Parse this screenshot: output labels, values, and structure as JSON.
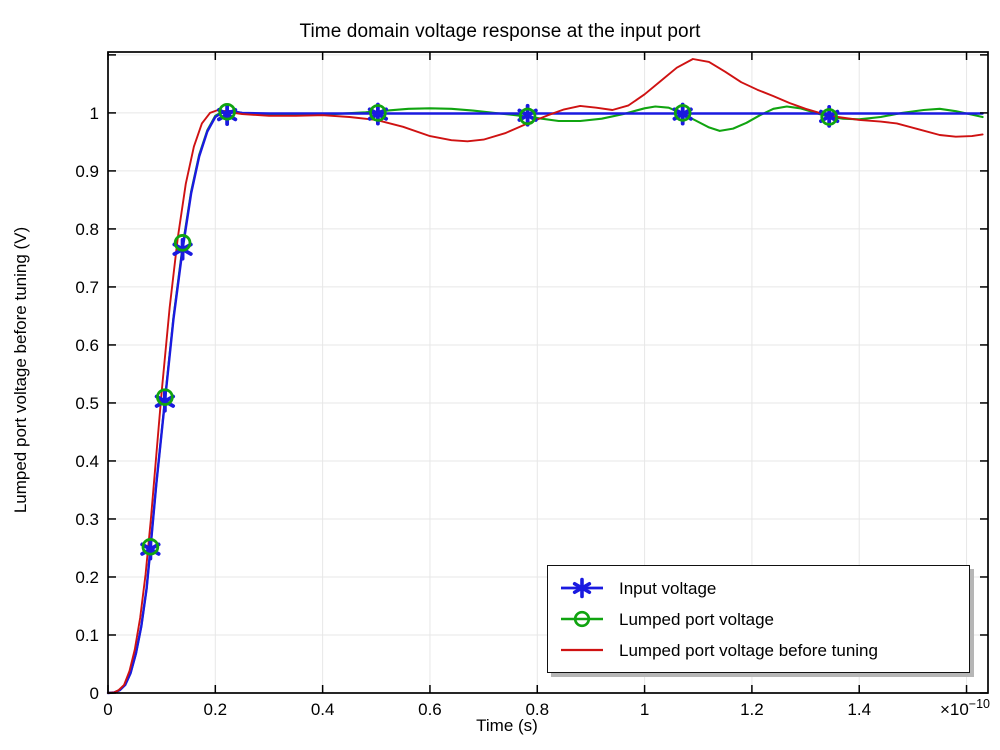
{
  "chart_data": {
    "type": "line",
    "title": "Time domain voltage response at the input port",
    "xlabel": "Time (s)",
    "ylabel": "Lumped port voltage before tuning (V)",
    "x_unit_note": "x values in units of 1e-10 seconds",
    "x_multiplier": {
      "base": "×10",
      "exponent": "−10"
    },
    "xlim": [
      0,
      1.64
    ],
    "ylim": [
      0,
      1.105
    ],
    "grid": true,
    "grid_color": "#e7e7e7",
    "frame_color": "#000000",
    "legend_position": "bottom-right",
    "xticks": {
      "values": [
        0,
        0.2,
        0.4,
        0.6,
        0.8,
        1,
        1.2,
        1.4,
        1.6
      ],
      "labels": [
        "0",
        "0.2",
        "0.4",
        "0.6",
        "0.8",
        "1",
        "1.2",
        "1.4",
        ""
      ]
    },
    "yticks": {
      "values": [
        0,
        0.1,
        0.2,
        0.3,
        0.4,
        0.5,
        0.6,
        0.7,
        0.8,
        0.9,
        1,
        1.1
      ],
      "labels": [
        "0",
        "0.1",
        "0.2",
        "0.3",
        "0.4",
        "0.5",
        "0.6",
        "0.7",
        "0.8",
        "0.9",
        "1",
        ""
      ]
    },
    "draw_order": [
      1,
      0,
      2
    ],
    "series": [
      {
        "id": "input-voltage",
        "name": "Input voltage",
        "color": "#1a1ae0",
        "line_width": 2.4,
        "marker": "asterisk",
        "marker_points": [
          [
            0.079,
            0.248
          ],
          [
            0.106,
            0.503
          ],
          [
            0.139,
            0.765
          ],
          [
            0.222,
            0.997
          ],
          [
            0.503,
            0.998
          ],
          [
            0.782,
            0.996
          ],
          [
            1.071,
            0.998
          ],
          [
            1.344,
            0.994
          ]
        ],
        "points": [
          [
            0,
            0
          ],
          [
            0.012,
            0.001
          ],
          [
            0.022,
            0.005
          ],
          [
            0.032,
            0.014
          ],
          [
            0.042,
            0.034
          ],
          [
            0.052,
            0.068
          ],
          [
            0.062,
            0.115
          ],
          [
            0.072,
            0.18
          ],
          [
            0.079,
            0.248
          ],
          [
            0.09,
            0.36
          ],
          [
            0.106,
            0.503
          ],
          [
            0.122,
            0.645
          ],
          [
            0.139,
            0.765
          ],
          [
            0.155,
            0.862
          ],
          [
            0.17,
            0.925
          ],
          [
            0.185,
            0.968
          ],
          [
            0.2,
            0.993
          ],
          [
            0.215,
            1.002
          ],
          [
            0.23,
            1.003
          ],
          [
            0.25,
            1.0
          ],
          [
            0.3,
            0.999
          ],
          [
            0.6,
            0.999
          ],
          [
            1.0,
            0.999
          ],
          [
            1.3,
            0.999
          ],
          [
            1.63,
            0.999
          ]
        ]
      },
      {
        "id": "lumped-port-voltage",
        "name": "Lumped port voltage",
        "color": "#10a410",
        "line_width": 2.1,
        "marker": "circle",
        "marker_points": [
          [
            0.079,
            0.252
          ],
          [
            0.106,
            0.51
          ],
          [
            0.139,
            0.776
          ],
          [
            0.222,
            1.002
          ],
          [
            0.503,
            1.0
          ],
          [
            0.782,
            0.994
          ],
          [
            1.071,
            1.0
          ],
          [
            1.344,
            0.993
          ]
        ],
        "points": [
          [
            0,
            0
          ],
          [
            0.012,
            0.001
          ],
          [
            0.022,
            0.005
          ],
          [
            0.032,
            0.014
          ],
          [
            0.042,
            0.034
          ],
          [
            0.052,
            0.068
          ],
          [
            0.062,
            0.115
          ],
          [
            0.072,
            0.18
          ],
          [
            0.079,
            0.25
          ],
          [
            0.09,
            0.36
          ],
          [
            0.106,
            0.505
          ],
          [
            0.122,
            0.648
          ],
          [
            0.139,
            0.77
          ],
          [
            0.155,
            0.865
          ],
          [
            0.17,
            0.928
          ],
          [
            0.185,
            0.97
          ],
          [
            0.2,
            0.995
          ],
          [
            0.215,
            1.003
          ],
          [
            0.23,
            1.003
          ],
          [
            0.25,
            1.0
          ],
          [
            0.3,
            0.997
          ],
          [
            0.36,
            0.997
          ],
          [
            0.42,
            0.998
          ],
          [
            0.48,
            1.001
          ],
          [
            0.52,
            1.004
          ],
          [
            0.56,
            1.007
          ],
          [
            0.6,
            1.008
          ],
          [
            0.64,
            1.007
          ],
          [
            0.68,
            1.004
          ],
          [
            0.72,
            1.0
          ],
          [
            0.76,
            0.996
          ],
          [
            0.8,
            0.991
          ],
          [
            0.84,
            0.986
          ],
          [
            0.88,
            0.986
          ],
          [
            0.92,
            0.99
          ],
          [
            0.96,
            0.998
          ],
          [
            1.0,
            1.008
          ],
          [
            1.02,
            1.011
          ],
          [
            1.045,
            1.009
          ],
          [
            1.07,
            0.999
          ],
          [
            1.095,
            0.987
          ],
          [
            1.12,
            0.975
          ],
          [
            1.14,
            0.969
          ],
          [
            1.165,
            0.973
          ],
          [
            1.19,
            0.983
          ],
          [
            1.215,
            0.996
          ],
          [
            1.24,
            1.007
          ],
          [
            1.265,
            1.011
          ],
          [
            1.29,
            1.008
          ],
          [
            1.315,
            1.001
          ],
          [
            1.34,
            0.994
          ],
          [
            1.37,
            0.99
          ],
          [
            1.4,
            0.989
          ],
          [
            1.44,
            0.993
          ],
          [
            1.48,
            1.0
          ],
          [
            1.52,
            1.005
          ],
          [
            1.55,
            1.007
          ],
          [
            1.58,
            1.003
          ],
          [
            1.61,
            0.997
          ],
          [
            1.63,
            0.993
          ]
        ]
      },
      {
        "id": "lumped-port-voltage-before-tuning",
        "name": "Lumped port voltage before tuning",
        "color": "#cf1212",
        "line_width": 1.9,
        "marker": "none",
        "marker_points": [],
        "points": [
          [
            0,
            0
          ],
          [
            0.012,
            0.001
          ],
          [
            0.02,
            0.005
          ],
          [
            0.03,
            0.014
          ],
          [
            0.04,
            0.038
          ],
          [
            0.05,
            0.075
          ],
          [
            0.06,
            0.13
          ],
          [
            0.07,
            0.205
          ],
          [
            0.08,
            0.3
          ],
          [
            0.09,
            0.41
          ],
          [
            0.1,
            0.52
          ],
          [
            0.115,
            0.665
          ],
          [
            0.13,
            0.785
          ],
          [
            0.145,
            0.878
          ],
          [
            0.16,
            0.942
          ],
          [
            0.175,
            0.982
          ],
          [
            0.19,
            1.0
          ],
          [
            0.205,
            1.005
          ],
          [
            0.22,
            1.002
          ],
          [
            0.25,
            0.998
          ],
          [
            0.3,
            0.995
          ],
          [
            0.35,
            0.995
          ],
          [
            0.4,
            0.996
          ],
          [
            0.45,
            0.993
          ],
          [
            0.5,
            0.988
          ],
          [
            0.55,
            0.976
          ],
          [
            0.6,
            0.96
          ],
          [
            0.64,
            0.953
          ],
          [
            0.67,
            0.951
          ],
          [
            0.7,
            0.954
          ],
          [
            0.74,
            0.965
          ],
          [
            0.78,
            0.981
          ],
          [
            0.82,
            0.996
          ],
          [
            0.85,
            1.006
          ],
          [
            0.88,
            1.012
          ],
          [
            0.91,
            1.009
          ],
          [
            0.94,
            1.005
          ],
          [
            0.97,
            1.013
          ],
          [
            1.0,
            1.032
          ],
          [
            1.03,
            1.055
          ],
          [
            1.06,
            1.078
          ],
          [
            1.09,
            1.093
          ],
          [
            1.12,
            1.088
          ],
          [
            1.15,
            1.071
          ],
          [
            1.18,
            1.053
          ],
          [
            1.21,
            1.04
          ],
          [
            1.24,
            1.029
          ],
          [
            1.27,
            1.017
          ],
          [
            1.3,
            1.007
          ],
          [
            1.33,
            0.999
          ],
          [
            1.36,
            0.993
          ],
          [
            1.4,
            0.988
          ],
          [
            1.44,
            0.985
          ],
          [
            1.47,
            0.982
          ],
          [
            1.51,
            0.972
          ],
          [
            1.55,
            0.962
          ],
          [
            1.58,
            0.959
          ],
          [
            1.61,
            0.96
          ],
          [
            1.63,
            0.963
          ]
        ]
      }
    ]
  }
}
